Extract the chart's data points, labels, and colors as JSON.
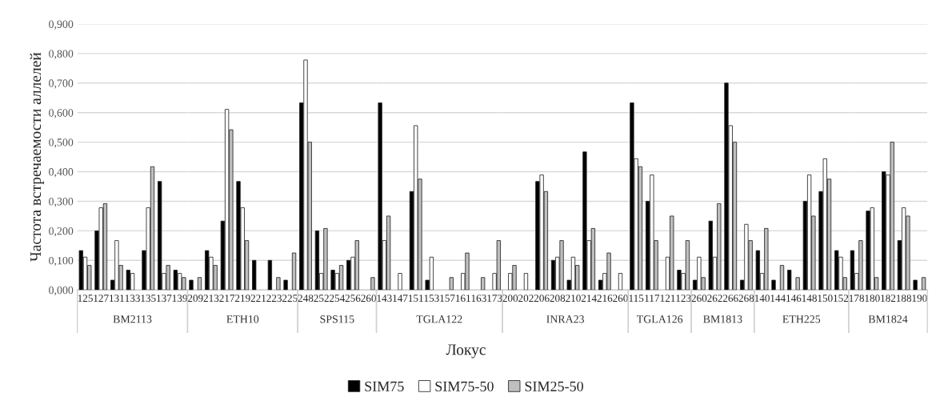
{
  "chart_data": [
    {
      "type": "bar",
      "ylabel": "Частота встречаемости аллелей",
      "xlabel": "BM2113",
      "categories": [
        "125",
        "127",
        "131",
        "133",
        "135",
        "137",
        "139"
      ],
      "series": [
        {
          "color": "#000000",
          "values": [
            0.133,
            0.2,
            0.033,
            0.067,
            0.133,
            0.367,
            0.067
          ]
        },
        {
          "color": "#ffffff",
          "values": [
            0.111,
            0.278,
            0.167,
            0.056,
            0.278,
            0.056,
            0.056
          ]
        },
        {
          "color": "#bfbfbf",
          "values": [
            0.083,
            0.292,
            0.083,
            null,
            0.417,
            0.083,
            0.042
          ]
        }
      ],
      "ylim": [
        0,
        0.9
      ],
      "yticks": [
        {
          "value": 0,
          "label": "0,000"
        },
        {
          "value": 0.1,
          "label": "0,100"
        },
        {
          "value": 0.2,
          "label": "0,200"
        },
        {
          "value": 0.3,
          "label": "0,300"
        },
        {
          "value": 0.4,
          "label": "0,400"
        },
        {
          "value": 0.5,
          "label": "0,500"
        },
        {
          "value": 0.6,
          "label": "0,600"
        },
        {
          "value": 0.7,
          "label": "0,700"
        },
        {
          "value": 0.8,
          "label": "0,800"
        },
        {
          "value": 0.9,
          "label": "0,900"
        }
      ],
      "grid": "y"
    },
    {
      "type": "bar",
      "xlabel": "ETH10",
      "categories": [
        "209",
        "213",
        "217",
        "219",
        "221",
        "223",
        "225"
      ],
      "series": [
        {
          "color": "#000000",
          "values": [
            0.033,
            0.133,
            0.233,
            0.367,
            0.1,
            0.1,
            0.033
          ]
        },
        {
          "color": "#ffffff",
          "values": [
            null,
            0.111,
            0.611,
            0.278,
            null,
            null,
            null
          ]
        },
        {
          "color": "#bfbfbf",
          "values": [
            0.042,
            0.083,
            0.542,
            0.167,
            null,
            0.042,
            0.125
          ]
        }
      ],
      "ylim": [
        0,
        0.9
      ],
      "grid": "y",
      "tick_labels": "x"
    },
    {
      "type": "bar",
      "xlabel": "SPS115",
      "categories": [
        "248",
        "252",
        "254",
        "256",
        "260"
      ],
      "series": [
        {
          "color": "#000000",
          "values": [
            0.633,
            0.2,
            0.067,
            0.1,
            null
          ]
        },
        {
          "color": "#ffffff",
          "values": [
            0.778,
            0.056,
            0.056,
            0.111,
            null
          ]
        },
        {
          "color": "#bfbfbf",
          "values": [
            0.5,
            0.208,
            0.083,
            0.167,
            0.042
          ]
        }
      ],
      "ylim": [
        0,
        0.9
      ],
      "grid": "y",
      "tick_labels": "x"
    },
    {
      "type": "bar",
      "xlabel": "TGLA122",
      "categories": [
        "143",
        "147",
        "151",
        "153",
        "157",
        "161",
        "163",
        "173"
      ],
      "series": [
        {
          "color": "#000000",
          "values": [
            0.633,
            null,
            0.333,
            0.033,
            null,
            null,
            null,
            null
          ]
        },
        {
          "color": "#ffffff",
          "values": [
            0.167,
            0.056,
            0.556,
            0.111,
            null,
            0.056,
            null,
            0.056
          ]
        },
        {
          "color": "#bfbfbf",
          "values": [
            0.25,
            null,
            0.375,
            null,
            0.042,
            0.125,
            0.042,
            0.167
          ]
        }
      ],
      "ylim": [
        0,
        0.9
      ],
      "grid": "y",
      "tick_labels": "x"
    },
    {
      "type": "bar",
      "xlabel": "INRA23",
      "categories": [
        "200",
        "202",
        "206",
        "208",
        "210",
        "214",
        "216",
        "260"
      ],
      "series": [
        {
          "name": "SIM75",
          "color": "#000000",
          "values": [
            null,
            null,
            0.367,
            0.1,
            0.033,
            0.467,
            0.033,
            null
          ]
        },
        {
          "name": "SIM75-50",
          "color": "#ffffff",
          "values": [
            0.056,
            0.056,
            0.389,
            0.111,
            0.111,
            0.167,
            0.056,
            0.056
          ]
        },
        {
          "name": "SIM25-50",
          "color": "#bfbfbf",
          "values": [
            0.083,
            null,
            0.333,
            0.167,
            0.083,
            0.208,
            0.125,
            null
          ]
        }
      ],
      "ylim": [
        0,
        0.9
      ],
      "grid": "y",
      "tick_labels": "x",
      "legend": "bottom",
      "annotations": [
        "Локус"
      ]
    },
    {
      "type": "bar",
      "xlabel": "TGLA126",
      "categories": [
        "115",
        "117",
        "121",
        "123"
      ],
      "series": [
        {
          "color": "#000000",
          "values": [
            0.633,
            0.3,
            null,
            0.067
          ]
        },
        {
          "color": "#ffffff",
          "values": [
            0.444,
            0.389,
            0.111,
            0.056
          ]
        },
        {
          "color": "#bfbfbf",
          "values": [
            0.417,
            0.167,
            0.25,
            0.167
          ]
        }
      ],
      "ylim": [
        0,
        0.9
      ],
      "grid": "y",
      "tick_labels": "x"
    },
    {
      "type": "bar",
      "xlabel": "BM1813",
      "categories": [
        "260",
        "262",
        "266",
        "268"
      ],
      "series": [
        {
          "color": "#000000",
          "values": [
            0.033,
            0.233,
            0.7,
            0.033
          ]
        },
        {
          "color": "#ffffff",
          "values": [
            0.111,
            0.111,
            0.556,
            0.222
          ]
        },
        {
          "color": "#bfbfbf",
          "values": [
            0.042,
            0.292,
            0.5,
            0.167
          ]
        }
      ],
      "ylim": [
        0,
        0.9
      ],
      "grid": "y",
      "tick_labels": "x"
    },
    {
      "type": "bar",
      "xlabel": "ETH225",
      "categories": [
        "140",
        "144",
        "146",
        "148",
        "150",
        "152"
      ],
      "series": [
        {
          "color": "#000000",
          "values": [
            0.133,
            0.033,
            0.067,
            0.3,
            0.333,
            0.133
          ]
        },
        {
          "color": "#ffffff",
          "values": [
            0.056,
            null,
            null,
            0.389,
            0.444,
            0.111
          ]
        },
        {
          "color": "#bfbfbf",
          "values": [
            0.208,
            0.083,
            0.042,
            0.25,
            0.375,
            0.042
          ]
        }
      ],
      "ylim": [
        0,
        0.9
      ],
      "grid": "y",
      "tick_labels": "x"
    },
    {
      "type": "bar",
      "xlabel": "BM1824",
      "categories": [
        "178",
        "180",
        "182",
        "188",
        "190"
      ],
      "series": [
        {
          "color": "#000000",
          "values": [
            0.133,
            0.267,
            0.4,
            0.167,
            0.033
          ]
        },
        {
          "color": "#ffffff",
          "values": [
            0.056,
            0.278,
            0.389,
            0.278,
            null
          ]
        },
        {
          "color": "#bfbfbf",
          "values": [
            0.167,
            0.042,
            0.5,
            0.25,
            0.042
          ]
        }
      ],
      "ylim": [
        0,
        0.9
      ],
      "grid": "y",
      "tick_labels": "x"
    }
  ]
}
